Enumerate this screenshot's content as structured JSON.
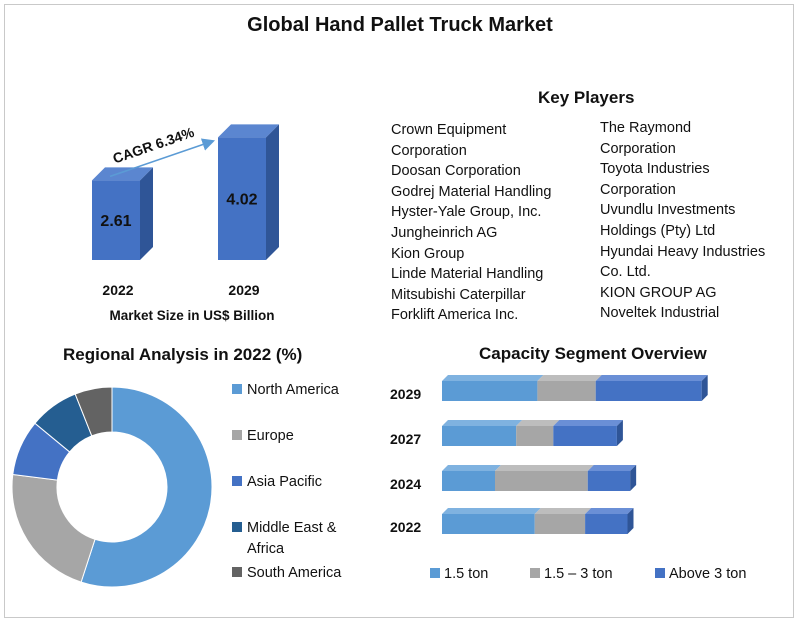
{
  "title": "Global Hand Pallet Truck Market",
  "colors": {
    "north_america": "#5b9bd5",
    "europe": "#a6a6a6",
    "asia_pacific": "#4472c4",
    "middle_east_africa": "#255e91",
    "south_america": "#636363",
    "bar_front": "#4472c4",
    "bar_side": "#2f5597",
    "bar_top": "#5b86d0"
  },
  "key_players": {
    "heading": "Key Players",
    "col1": [
      "Crown Equipment",
      "Corporation",
      "Doosan Corporation",
      "Godrej Material Handling",
      "Hyster-Yale Group, Inc.",
      "Jungheinrich AG",
      "Kion Group",
      "Linde Material Handling",
      "Mitsubishi Caterpillar",
      "Forklift America Inc."
    ],
    "col2": [
      "The Raymond",
      "Corporation",
      "Toyota Industries",
      "Corporation",
      "Uvundlu Investments",
      "Holdings (Pty) Ltd",
      "Hyundai Heavy Industries",
      "Co. Ltd.",
      "KION GROUP AG",
      "Noveltek Industrial"
    ]
  },
  "chart_data": [
    {
      "type": "bar",
      "title": "",
      "xlabel": "Market Size in US$ Billion",
      "categories": [
        "2022",
        "2029"
      ],
      "values": [
        2.61,
        4.02
      ],
      "data_labels": [
        "2.61",
        "4.02"
      ],
      "annotation": "CAGR 6.34%"
    },
    {
      "type": "pie",
      "title": "Regional Analysis in 2022 (%)",
      "categories": [
        "North America",
        "Europe",
        "Asia Pacific",
        "Middle East & Africa",
        "South America"
      ],
      "values": [
        55,
        22,
        9,
        8,
        6
      ],
      "legend": "right"
    },
    {
      "type": "bar",
      "orientation": "horizontal",
      "stacked": true,
      "title": "Capacity Segment Overview",
      "categories": [
        "2029",
        "2027",
        "2024",
        "2022"
      ],
      "series": [
        {
          "name": "1.5 ton",
          "values": [
            36,
            28,
            20,
            35
          ]
        },
        {
          "name": "1.5 – 3 ton",
          "values": [
            22,
            14,
            35,
            19
          ]
        },
        {
          "name": "Above 3 ton",
          "values": [
            40,
            24,
            16,
            16
          ]
        }
      ],
      "legend": "bottom"
    }
  ]
}
